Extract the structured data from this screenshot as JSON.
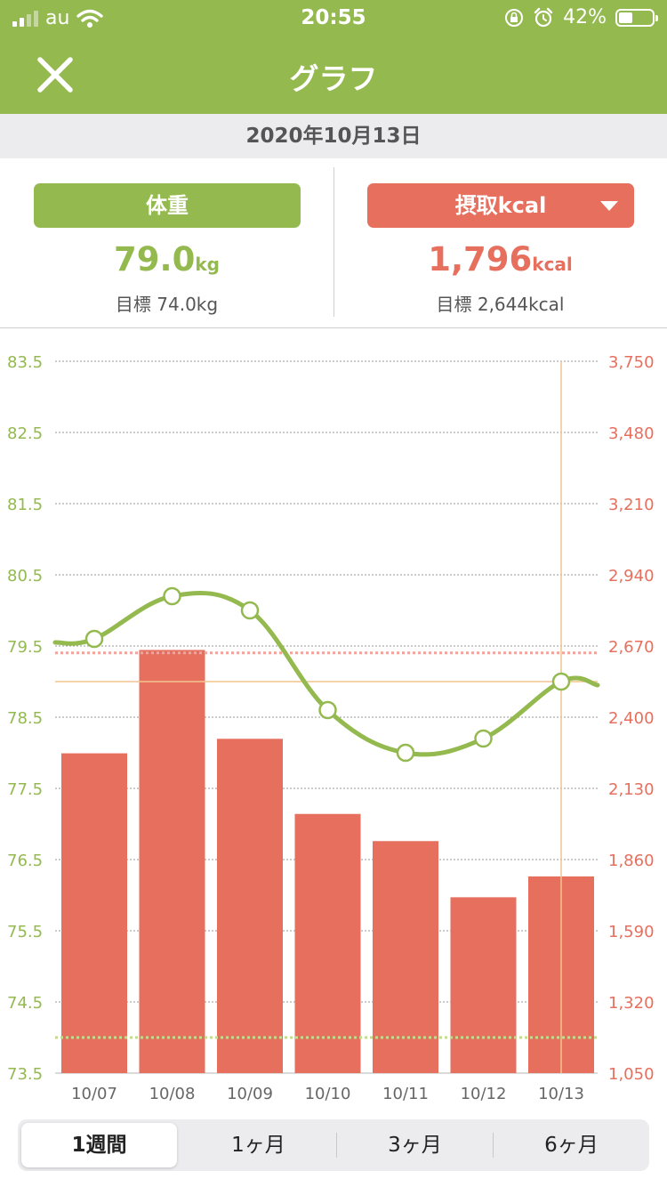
{
  "status": {
    "carrier": "au",
    "time": "20:55",
    "battery": "42%",
    "battery_level": 0.42
  },
  "header": {
    "title": "グラフ"
  },
  "date": "2020年10月13日",
  "weight": {
    "label": "体重",
    "value": "79.0",
    "unit": "kg",
    "goal": "目標 74.0kg"
  },
  "kcal": {
    "label": "摂取kcal",
    "value": "1,796",
    "unit": "kcal",
    "goal": "目標 2,644kcal"
  },
  "colors": {
    "weight": "#94b94f",
    "kcal": "#e66f5e",
    "header": "#94b94f"
  },
  "icons": {
    "close": "close-icon",
    "dropdown": "chevron-down-icon",
    "wifi": "wifi-icon",
    "lock": "orientation-lock-icon",
    "alarm": "alarm-icon",
    "battery": "battery-icon"
  },
  "chart_data": {
    "type": "bar",
    "categories": [
      "10/07",
      "10/08",
      "10/09",
      "10/10",
      "10/11",
      "10/12",
      "10/13"
    ],
    "series": [
      {
        "type": "bar",
        "axis": "right",
        "values": [
          2263,
          2655,
          2318,
          2033,
          1930,
          1717,
          1796
        ]
      },
      {
        "type": "line",
        "axis": "left",
        "values": [
          79.6,
          80.2,
          80.0,
          78.6,
          78.0,
          78.2,
          79.0
        ],
        "continues_beyond_edges": true
      }
    ],
    "y_left": {
      "ticks": [
        "83.5",
        "82.5",
        "81.5",
        "80.5",
        "79.5",
        "78.5",
        "77.5",
        "76.5",
        "75.5",
        "74.5",
        "73.5"
      ],
      "range": [
        73.5,
        83.5
      ]
    },
    "y_right": {
      "ticks": [
        "3,750",
        "3,480",
        "3,210",
        "2,940",
        "2,670",
        "2,400",
        "2,130",
        "1,860",
        "1,590",
        "1,320",
        "1,050"
      ],
      "range": [
        1050,
        3750
      ]
    },
    "weight_goal": 74.0,
    "kcal_goal": 2644,
    "selected": "10/13",
    "grid": true
  },
  "ranges": {
    "items": [
      "1週間",
      "1ヶ月",
      "3ヶ月",
      "6ヶ月"
    ],
    "selected": 0
  }
}
